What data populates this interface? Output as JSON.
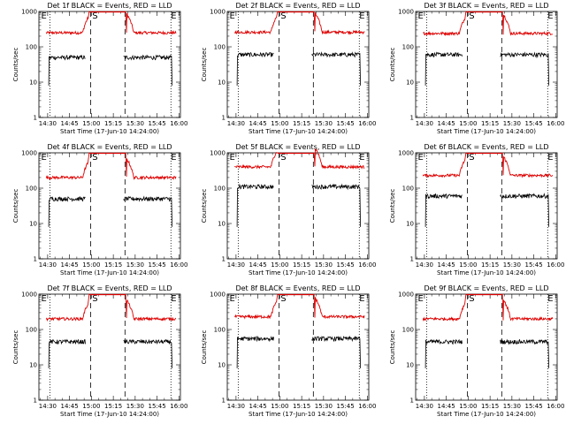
{
  "chart_data": {
    "type": "line",
    "xlabel": "Start Time (17-Jun-10 14:24:00)",
    "ylabel": "Counts/sec",
    "x_ticks": [
      "14:30",
      "14:45",
      "15:00",
      "15:15",
      "15:30",
      "15:45",
      "16:00"
    ],
    "x_tick_minutes": [
      30,
      45,
      60,
      75,
      90,
      105,
      120
    ],
    "xlim_minutes": [
      24,
      121
    ],
    "y_scale": "log",
    "y_ticks": [
      "1",
      "10",
      "100",
      "1000"
    ],
    "ylim": [
      1,
      1000
    ],
    "markers": [
      "E",
      "S",
      "E"
    ],
    "colors": {
      "events": "#000000",
      "lld": "#dd0000"
    },
    "panels": [
      {
        "title": "Det 1f BLACK = Events, RED = LLD",
        "lld_level": 250,
        "events_level": 50
      },
      {
        "title": "Det 2f BLACK = Events, RED = LLD",
        "lld_level": 260,
        "events_level": 60
      },
      {
        "title": "Det 3f BLACK = Events, RED = LLD",
        "lld_level": 240,
        "events_level": 60
      },
      {
        "title": "Det 4f BLACK = Events, RED = LLD",
        "lld_level": 200,
        "events_level": 50
      },
      {
        "title": "Det 5f BLACK = Events, RED = LLD",
        "lld_level": 400,
        "events_level": 110
      },
      {
        "title": "Det 6f BLACK = Events, RED = LLD",
        "lld_level": 230,
        "events_level": 60
      },
      {
        "title": "Det 7f BLACK = Events, RED = LLD",
        "lld_level": 200,
        "events_level": 45
      },
      {
        "title": "Det 8f BLACK = Events, RED = LLD",
        "lld_level": 230,
        "events_level": 55
      },
      {
        "title": "Det 9f BLACK = Events, RED = LLD",
        "lld_level": 200,
        "events_level": 45
      }
    ]
  }
}
